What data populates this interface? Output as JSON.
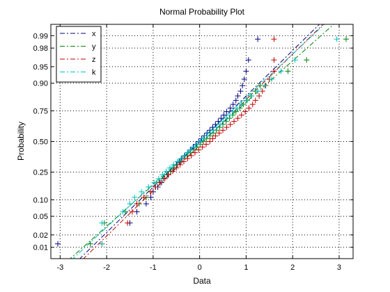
{
  "chart_data": {
    "type": "scatter",
    "title": "Normal Probability Plot",
    "xlabel": "Data",
    "ylabel": "Probability",
    "xlim": [
      -3.2,
      3.3
    ],
    "xticks": [
      -3,
      -2,
      -1,
      0,
      1,
      2,
      3
    ],
    "xtick_labels": [
      "-3",
      "-2",
      "-1",
      "0",
      "1",
      "2",
      "3"
    ],
    "ylim": [
      0.005,
      0.995
    ],
    "yscale": "probit",
    "yticks": [
      0.01,
      0.02,
      0.05,
      0.1,
      0.25,
      0.5,
      0.75,
      0.9,
      0.95,
      0.98,
      0.99
    ],
    "ytick_labels": [
      "0.01",
      "0.02",
      "0.05",
      "0.10",
      "0.25",
      "0.50",
      "0.75",
      "0.90",
      "0.95",
      "0.98",
      "0.99"
    ],
    "grid": true,
    "legend": "top-left",
    "marker": "+",
    "series": [
      {
        "name": "x",
        "color": "#00007f",
        "line_style": "dash-dot",
        "fit_mean": 0.0,
        "fit_std": 1.0,
        "quantile_values": [
          -3.05,
          -1.5,
          -1.35,
          -1.15,
          -1.05,
          -1.0,
          -0.9,
          -0.82,
          -0.75,
          -0.68,
          -0.62,
          -0.56,
          -0.5,
          -0.44,
          -0.38,
          -0.32,
          -0.26,
          -0.2,
          -0.14,
          -0.08,
          -0.02,
          0.04,
          0.1,
          0.16,
          0.22,
          0.28,
          0.34,
          0.4,
          0.46,
          0.52,
          0.58,
          0.66,
          0.72,
          0.78,
          0.82,
          0.88,
          0.92,
          0.96,
          1.0,
          1.05,
          1.25
        ]
      },
      {
        "name": "y",
        "color": "#007f00",
        "line_style": "dash-dot",
        "fit_mean": 0.05,
        "fit_std": 1.1,
        "quantile_values": [
          -2.35,
          -2.05,
          -1.6,
          -1.3,
          -1.15,
          -1.05,
          -0.95,
          -0.86,
          -0.78,
          -0.7,
          -0.62,
          -0.55,
          -0.48,
          -0.41,
          -0.34,
          -0.27,
          -0.2,
          -0.13,
          -0.06,
          0.01,
          0.08,
          0.15,
          0.22,
          0.29,
          0.36,
          0.43,
          0.5,
          0.57,
          0.64,
          0.71,
          0.78,
          0.86,
          0.94,
          1.02,
          1.1,
          1.2,
          1.3,
          1.5,
          1.9,
          2.3,
          3.15
        ]
      },
      {
        "name": "z",
        "color": "#bf0000",
        "line_style": "dash-dot",
        "fit_mean": 0.08,
        "fit_std": 1.0,
        "quantile_values": [
          -2.1,
          -1.55,
          -1.45,
          -1.35,
          -1.2,
          -1.05,
          -0.95,
          -0.85,
          -0.75,
          -0.67,
          -0.58,
          -0.5,
          -0.42,
          -0.34,
          -0.26,
          -0.18,
          -0.1,
          -0.02,
          0.06,
          0.14,
          0.22,
          0.28,
          0.34,
          0.42,
          0.5,
          0.58,
          0.66,
          0.74,
          0.82,
          0.9,
          0.98,
          1.06,
          1.14,
          1.2,
          1.28,
          1.35,
          1.42,
          1.5,
          1.6,
          1.6,
          1.6
        ]
      },
      {
        "name": "k",
        "color": "#00bfbf",
        "line_style": "dash-dot",
        "fit_mean": -0.02,
        "fit_std": 1.05,
        "quantile_values": [
          -2.1,
          -2.1,
          -1.65,
          -1.5,
          -1.4,
          -1.25,
          -1.1,
          -0.98,
          -0.88,
          -0.8,
          -0.72,
          -0.64,
          -0.56,
          -0.48,
          -0.4,
          -0.33,
          -0.26,
          -0.19,
          -0.12,
          -0.05,
          0.02,
          0.09,
          0.16,
          0.23,
          0.3,
          0.37,
          0.44,
          0.51,
          0.58,
          0.65,
          0.72,
          0.8,
          0.9,
          1.0,
          1.12,
          1.25,
          1.4,
          1.55,
          1.75,
          2.05,
          2.95
        ]
      }
    ]
  }
}
